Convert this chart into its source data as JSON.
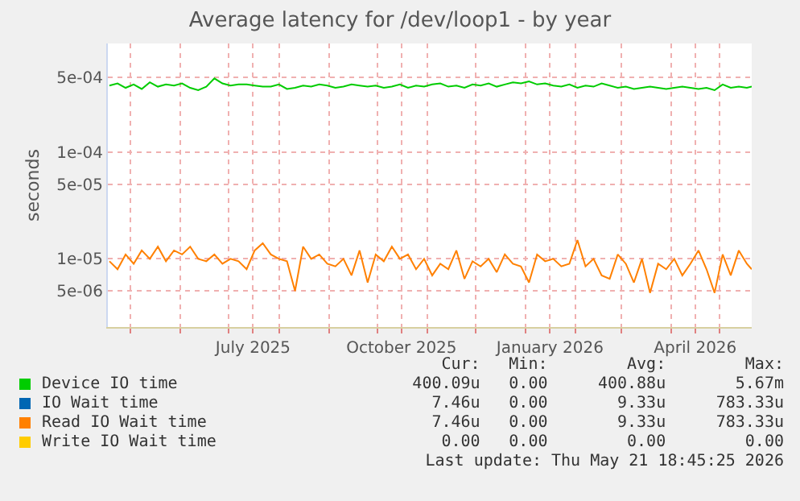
{
  "chart_data": {
    "type": "line",
    "title": "Average latency for /dev/loop1 - by year",
    "ylabel": "seconds",
    "x": [
      "2025-04-18",
      "2025-04-23",
      "2025-04-28",
      "2025-05-03",
      "2025-05-08",
      "2025-05-13",
      "2025-05-18",
      "2025-05-23",
      "2025-05-28",
      "2025-06-02",
      "2025-06-07",
      "2025-06-12",
      "2025-06-17",
      "2025-06-22",
      "2025-06-27",
      "2025-07-02",
      "2025-07-07",
      "2025-07-12",
      "2025-07-17",
      "2025-07-22",
      "2025-07-27",
      "2025-08-01",
      "2025-08-06",
      "2025-08-11",
      "2025-08-16",
      "2025-08-21",
      "2025-08-26",
      "2025-08-31",
      "2025-09-05",
      "2025-09-10",
      "2025-09-15",
      "2025-09-20",
      "2025-09-25",
      "2025-09-30",
      "2025-10-05",
      "2025-10-10",
      "2025-10-15",
      "2025-10-20",
      "2025-10-25",
      "2025-10-30",
      "2025-11-04",
      "2025-11-09",
      "2025-11-14",
      "2025-11-19",
      "2025-11-24",
      "2025-11-29",
      "2025-12-04",
      "2025-12-09",
      "2025-12-14",
      "2025-12-19",
      "2025-12-24",
      "2025-12-29",
      "2026-01-03",
      "2026-01-08",
      "2026-01-13",
      "2026-01-18",
      "2026-01-23",
      "2026-01-28",
      "2026-02-02",
      "2026-02-07",
      "2026-02-12",
      "2026-02-17",
      "2026-02-22",
      "2026-02-27",
      "2026-03-04",
      "2026-03-09",
      "2026-03-14",
      "2026-03-19",
      "2026-03-24",
      "2026-03-29",
      "2026-04-03",
      "2026-04-08",
      "2026-04-13",
      "2026-04-18",
      "2026-04-23",
      "2026-04-28",
      "2026-05-03",
      "2026-05-08",
      "2026-05-13",
      "2026-05-18",
      "2026-05-21"
    ],
    "series": [
      {
        "name": "Device IO time",
        "color": "#00cc00",
        "values": [
          0.00042,
          0.00044,
          0.0004,
          0.00043,
          0.00039,
          0.00045,
          0.00041,
          0.00043,
          0.00042,
          0.00044,
          0.0004,
          0.00038,
          0.00041,
          0.00049,
          0.00044,
          0.00042,
          0.00043,
          0.00043,
          0.00042,
          0.00041,
          0.00041,
          0.00043,
          0.00039,
          0.0004,
          0.00042,
          0.00041,
          0.00043,
          0.00042,
          0.0004,
          0.00041,
          0.00043,
          0.00042,
          0.00041,
          0.00042,
          0.0004,
          0.00041,
          0.00043,
          0.0004,
          0.00042,
          0.00041,
          0.00043,
          0.00044,
          0.00041,
          0.00042,
          0.0004,
          0.00043,
          0.00042,
          0.00044,
          0.00041,
          0.00043,
          0.00045,
          0.00044,
          0.00046,
          0.00043,
          0.00044,
          0.00042,
          0.00041,
          0.00043,
          0.0004,
          0.00042,
          0.00041,
          0.00044,
          0.00042,
          0.0004,
          0.00041,
          0.00039,
          0.0004,
          0.00041,
          0.0004,
          0.00039,
          0.0004,
          0.00041,
          0.0004,
          0.00039,
          0.0004,
          0.00038,
          0.00043,
          0.0004,
          0.00041,
          0.0004,
          0.00041
        ]
      },
      {
        "name": "IO Wait time",
        "color": "#0066b3",
        "values": [
          null,
          null,
          null,
          null,
          null,
          null,
          null,
          null,
          null,
          null,
          null,
          null,
          null,
          null,
          null,
          null,
          null,
          null,
          null,
          null,
          null,
          null,
          null,
          null,
          null,
          null,
          null,
          null,
          null,
          null,
          null,
          null,
          null,
          null,
          null,
          null,
          null,
          null,
          null,
          null,
          null,
          null,
          null,
          null,
          null,
          null,
          null,
          null,
          null,
          null,
          null,
          null,
          null,
          null,
          null,
          null,
          null,
          null,
          null,
          null,
          null,
          null,
          null,
          null,
          null,
          null,
          null,
          null,
          null,
          null,
          null,
          null,
          null,
          null,
          null,
          null,
          null,
          null,
          null,
          null,
          null
        ]
      },
      {
        "name": "Read IO Wait time",
        "color": "#ff8000",
        "values": [
          9.5e-06,
          8e-06,
          1.1e-05,
          9e-06,
          1.2e-05,
          1e-05,
          1.3e-05,
          9.5e-06,
          1.2e-05,
          1.1e-05,
          1.3e-05,
          1e-05,
          9.5e-06,
          1.1e-05,
          9e-06,
          1e-05,
          9.5e-06,
          8e-06,
          1.2e-05,
          1.4e-05,
          1.1e-05,
          1e-05,
          9.5e-06,
          5e-06,
          1.3e-05,
          1e-05,
          1.1e-05,
          9e-06,
          8.5e-06,
          1e-05,
          7e-06,
          1.2e-05,
          6e-06,
          1.1e-05,
          9.5e-06,
          1.3e-05,
          1e-05,
          1.1e-05,
          8e-06,
          1e-05,
          7e-06,
          9e-06,
          8e-06,
          1.2e-05,
          6.5e-06,
          9.5e-06,
          8.5e-06,
          1e-05,
          7.5e-06,
          1.1e-05,
          9e-06,
          8.5e-06,
          6e-06,
          1.1e-05,
          9.5e-06,
          1e-05,
          8.5e-06,
          9e-06,
          1.5e-05,
          8.5e-06,
          1e-05,
          7e-06,
          6.5e-06,
          1.1e-05,
          9e-06,
          6e-06,
          1e-05,
          4.8e-06,
          9e-06,
          8e-06,
          1e-05,
          7e-06,
          9e-06,
          1.2e-05,
          8e-06,
          4.8e-06,
          1.1e-05,
          7e-06,
          1.2e-05,
          9e-06,
          8e-06
        ]
      },
      {
        "name": "Write IO Wait time",
        "color": "#ffcc00",
        "values": [
          null,
          null,
          null,
          null,
          null,
          null,
          null,
          null,
          null,
          null,
          null,
          null,
          null,
          null,
          null,
          null,
          null,
          null,
          null,
          null,
          null,
          null,
          null,
          null,
          null,
          null,
          null,
          null,
          null,
          null,
          null,
          null,
          null,
          null,
          null,
          null,
          null,
          null,
          null,
          null,
          null,
          null,
          null,
          null,
          null,
          null,
          null,
          null,
          null,
          null,
          null,
          null,
          null,
          null,
          null,
          null,
          null,
          null,
          null,
          null,
          null,
          null,
          null,
          null,
          null,
          null,
          null,
          null,
          null,
          null,
          null,
          null,
          null,
          null,
          null,
          null,
          null,
          null,
          null,
          null,
          null
        ]
      }
    ],
    "log": "y",
    "ylim": [
      2.3e-06,
      0.00104
    ],
    "yticks": [
      {
        "value": 5e-06,
        "label": "5e-06"
      },
      {
        "value": 1e-05,
        "label": "1e-05"
      },
      {
        "value": 5e-05,
        "label": "5e-05"
      },
      {
        "value": 0.0001,
        "label": "1e-04"
      },
      {
        "value": 0.0005,
        "label": "5e-04"
      }
    ],
    "xlim": [
      "2025-04-17",
      "2026-05-21"
    ],
    "xticks": [
      {
        "value": "2025-05-01",
        "label": null
      },
      {
        "value": "2025-06-01",
        "label": null
      },
      {
        "value": "2025-07-01",
        "label": null
      },
      {
        "value": "2025-07-16",
        "label": "July 2025"
      },
      {
        "value": "2025-08-01",
        "label": null
      },
      {
        "value": "2025-09-01",
        "label": null
      },
      {
        "value": "2025-10-01",
        "label": null
      },
      {
        "value": "2025-10-16",
        "label": "October 2025"
      },
      {
        "value": "2025-11-01",
        "label": null
      },
      {
        "value": "2025-12-01",
        "label": null
      },
      {
        "value": "2026-01-01",
        "label": null
      },
      {
        "value": "2026-01-16",
        "label": "January 2026"
      },
      {
        "value": "2026-02-01",
        "label": null
      },
      {
        "value": "2026-03-01",
        "label": null
      },
      {
        "value": "2026-04-01",
        "label": null
      },
      {
        "value": "2026-04-16",
        "label": "April 2026"
      },
      {
        "value": "2026-05-01",
        "label": null
      }
    ],
    "grid": true,
    "legend": "bottom",
    "line_style": "solid",
    "marker": "none",
    "annotations": [
      "Cur:",
      "Min:",
      "Avg:",
      "Max:",
      "400.09u",
      "0.00",
      "400.88u",
      "5.67m",
      "7.46u",
      "0.00",
      "9.33u",
      "783.33u",
      "7.46u",
      "0.00",
      "9.33u",
      "783.33u",
      "0.00",
      "0.00",
      "0.00",
      "0.00",
      "Last update: Thu May 21 18:45:25 2026"
    ]
  }
}
